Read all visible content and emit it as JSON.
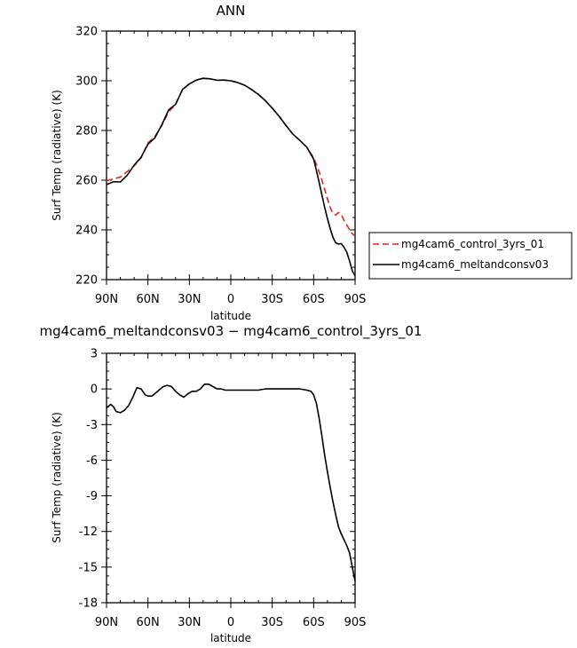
{
  "chart_data": [
    {
      "type": "line",
      "title": "ANN",
      "xlabel": "latitude",
      "ylabel": "Surf Temp (radiative) (K)",
      "xlim": [
        90,
        -90
      ],
      "ylim": [
        220,
        320
      ],
      "x_ticks": [
        90,
        60,
        30,
        0,
        -30,
        -60,
        -90
      ],
      "x_tick_labels": [
        "90N",
        "60N",
        "30N",
        "0",
        "30S",
        "60S",
        "90S"
      ],
      "y_ticks": [
        220,
        240,
        260,
        280,
        300,
        320
      ],
      "y_tick_labels": [
        "220",
        "240",
        "260",
        "280",
        "300",
        "320"
      ],
      "legend_position": "right",
      "series": [
        {
          "name": "mg4cam6_control_3yrs_01",
          "color": "#e8221f",
          "dash": "dashed",
          "x": [
            90,
            85,
            80,
            75,
            70,
            65,
            60,
            55,
            50,
            45,
            40,
            35,
            30,
            25,
            20,
            15,
            10,
            5,
            0,
            -5,
            -10,
            -15,
            -20,
            -25,
            -30,
            -35,
            -40,
            -45,
            -50,
            -55,
            -60,
            -63,
            -66,
            -68,
            -70,
            -72,
            -74,
            -76,
            -78,
            -80,
            -82,
            -84,
            -86,
            -88,
            -90
          ],
          "values": [
            259.8,
            260.5,
            261.3,
            263.5,
            265.8,
            269,
            275,
            277.5,
            282,
            287.5,
            290.5,
            296.5,
            298.8,
            300.2,
            301,
            300.8,
            300.2,
            300.3,
            300,
            299.3,
            298.2,
            296.5,
            294.5,
            292,
            289,
            285.7,
            282,
            278.5,
            276,
            273.3,
            269,
            265,
            260,
            256.3,
            252.5,
            249,
            246.5,
            246,
            247,
            246.3,
            243.8,
            242,
            240,
            238.5,
            237.5
          ]
        },
        {
          "name": "mg4cam6_meltandconsv03",
          "color": "#000000",
          "dash": "solid",
          "x": [
            90,
            85,
            80,
            75,
            70,
            65,
            60,
            55,
            50,
            45,
            40,
            35,
            30,
            25,
            20,
            15,
            10,
            5,
            0,
            -5,
            -10,
            -15,
            -20,
            -25,
            -30,
            -35,
            -40,
            -45,
            -50,
            -55,
            -60,
            -62,
            -64,
            -66,
            -68,
            -70,
            -72,
            -74,
            -76,
            -78,
            -80,
            -82,
            -84,
            -86,
            -88,
            -90
          ],
          "values": [
            258.2,
            259.4,
            259.3,
            262,
            266,
            269.2,
            274.5,
            277,
            282.2,
            288.3,
            290.5,
            296.5,
            298.7,
            300.3,
            301,
            300.8,
            300.2,
            300.3,
            300,
            299.3,
            298.2,
            296.5,
            294.5,
            292,
            289,
            285.7,
            282,
            278.5,
            276,
            273.3,
            268.5,
            264,
            259,
            254,
            249,
            244.5,
            240.5,
            237,
            234.8,
            234.3,
            234.5,
            233,
            231,
            227.5,
            223.5,
            221.5
          ]
        }
      ]
    },
    {
      "type": "line",
      "title": "mg4cam6_meltandconsv03 − mg4cam6_control_3yrs_01",
      "xlabel": "latitude",
      "ylabel": "Surf Temp (radiative) (K)",
      "xlim": [
        90,
        -90
      ],
      "ylim": [
        -18,
        3
      ],
      "x_ticks": [
        90,
        60,
        30,
        0,
        -30,
        -60,
        -90
      ],
      "x_tick_labels": [
        "90N",
        "60N",
        "30N",
        "0",
        "30S",
        "60S",
        "90S"
      ],
      "y_ticks": [
        -18,
        -15,
        -12,
        -9,
        -6,
        -3,
        0,
        3
      ],
      "y_tick_labels": [
        "-18",
        "-15",
        "-12",
        "-9",
        "-6",
        "-3",
        "0",
        "3"
      ],
      "series": [
        {
          "color": "#000000",
          "dash": "solid",
          "x": [
            90,
            87,
            85,
            83,
            80,
            77,
            74,
            71,
            68,
            65,
            62,
            60,
            57,
            55,
            52,
            49,
            46,
            43,
            40,
            37,
            34,
            31,
            28,
            25,
            22,
            19,
            16,
            13,
            10,
            7,
            4,
            0,
            -5,
            -10,
            -15,
            -20,
            -25,
            -30,
            -35,
            -40,
            -45,
            -50,
            -55,
            -58,
            -60,
            -62,
            -64,
            -66,
            -68,
            -70,
            -72,
            -74,
            -76,
            -78,
            -80,
            -82,
            -84,
            -86,
            -88,
            -90
          ],
          "values": [
            -1.6,
            -1.3,
            -1.5,
            -1.9,
            -2.0,
            -1.8,
            -1.4,
            -0.7,
            0.1,
            0.0,
            -0.5,
            -0.6,
            -0.6,
            -0.4,
            -0.1,
            0.2,
            0.3,
            0.2,
            -0.2,
            -0.5,
            -0.7,
            -0.4,
            -0.2,
            -0.2,
            0.0,
            0.4,
            0.4,
            0.2,
            0.0,
            0.0,
            -0.1,
            -0.1,
            -0.1,
            -0.1,
            -0.1,
            -0.1,
            0.0,
            0.0,
            0.0,
            0.0,
            0.0,
            0.0,
            -0.1,
            -0.2,
            -0.5,
            -1.2,
            -2.5,
            -4.0,
            -5.6,
            -7.0,
            -8.3,
            -9.5,
            -10.6,
            -11.6,
            -12.2,
            -12.7,
            -13.2,
            -13.8,
            -15.0,
            -16.2
          ]
        }
      ]
    }
  ]
}
